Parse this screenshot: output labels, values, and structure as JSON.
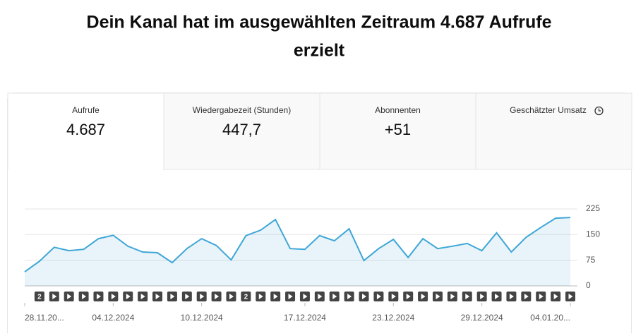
{
  "header": {
    "title_line1": "Dein Kanal hat im ausgewählten Zeitraum 4.687 Aufrufe",
    "title_line2": "erzielt"
  },
  "metrics": [
    {
      "label": "Aufrufe",
      "value": "4.687"
    },
    {
      "label": "Wiedergabezeit (Stunden)",
      "value": "447,7"
    },
    {
      "label": "Abonnenten",
      "value": "+51"
    },
    {
      "label": "Geschätzter Umsatz"
    }
  ],
  "chart_data": {
    "type": "line",
    "categories": [
      "28.11.20...",
      null,
      null,
      null,
      null,
      null,
      "04.12.2024",
      null,
      null,
      null,
      null,
      null,
      "10.12.2024",
      null,
      null,
      null,
      null,
      null,
      null,
      "17.12.2024",
      null,
      null,
      null,
      null,
      null,
      "23.12.2024",
      null,
      null,
      null,
      null,
      null,
      "29.12.2024",
      null,
      null,
      null,
      null,
      null,
      "04.01.20..."
    ],
    "values": [
      41,
      72,
      113,
      103,
      107,
      138,
      148,
      116,
      99,
      97,
      68,
      109,
      138,
      118,
      76,
      147,
      163,
      194,
      109,
      107,
      147,
      132,
      167,
      74,
      109,
      136,
      83,
      138,
      109,
      116,
      124,
      103,
      155,
      99,
      142,
      171,
      198,
      200
    ],
    "color": "#3ea6d6",
    "ylim": [
      0,
      225
    ],
    "yticks": [
      0,
      75,
      150,
      225
    ],
    "grid": true,
    "marker_labels": [
      {
        "index": 1,
        "label": "2"
      },
      {
        "index": 15,
        "label": "2"
      }
    ]
  }
}
